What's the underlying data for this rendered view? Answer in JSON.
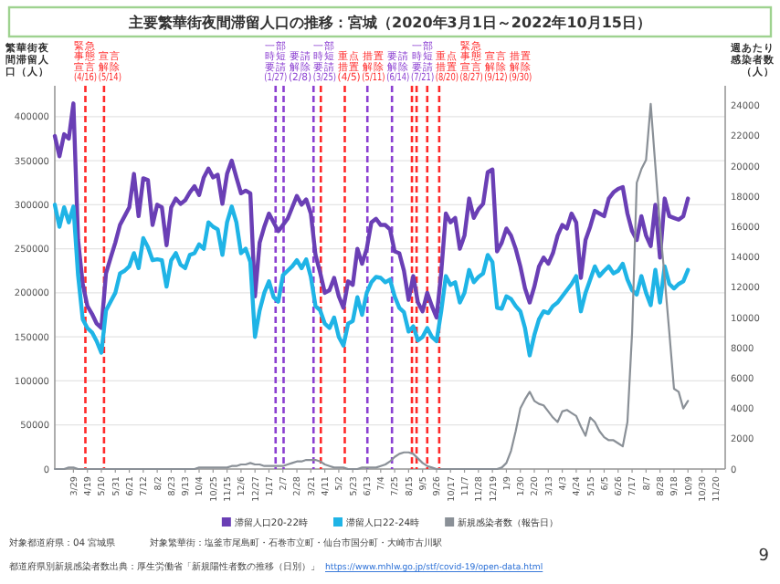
{
  "chart_data": {
    "type": "line",
    "title": "主要繁華街夜間滞留人口の推移：宮城（2020年3月1日～2022年10月15日）",
    "ylabel": "繁華街夜間滞留人口（人）",
    "y2label": "週あたり感染者数（人）",
    "x": [
      "2020-03-01",
      "2020-03-08",
      "2020-03-15",
      "2020-03-22",
      "2020-03-29",
      "2020-04-05",
      "2020-04-12",
      "2020-04-19",
      "2020-04-26",
      "2020-05-03",
      "2020-05-10",
      "2020-05-17",
      "2020-05-24",
      "2020-05-31",
      "2020-06-07",
      "2020-06-14",
      "2020-06-21",
      "2020-06-28",
      "2020-07-05",
      "2020-07-12",
      "2020-07-19",
      "2020-07-26",
      "2020-08-02",
      "2020-08-09",
      "2020-08-16",
      "2020-08-23",
      "2020-08-30",
      "2020-09-06",
      "2020-09-13",
      "2020-09-20",
      "2020-09-27",
      "2020-10-04",
      "2020-10-11",
      "2020-10-18",
      "2020-10-25",
      "2020-11-01",
      "2020-11-08",
      "2020-11-15",
      "2020-11-22",
      "2020-11-29",
      "2020-12-06",
      "2020-12-13",
      "2020-12-20",
      "2020-12-27",
      "2021-01-03",
      "2021-01-10",
      "2021-01-17",
      "2021-01-24",
      "2021-01-31",
      "2021-02-07",
      "2021-02-14",
      "2021-02-21",
      "2021-02-28",
      "2021-03-07",
      "2021-03-14",
      "2021-03-21",
      "2021-03-28",
      "2021-04-04",
      "2021-04-11",
      "2021-04-18",
      "2021-04-25",
      "2021-05-02",
      "2021-05-09",
      "2021-05-16",
      "2021-05-23",
      "2021-05-30",
      "2021-06-06",
      "2021-06-13",
      "2021-06-20",
      "2021-06-27",
      "2021-07-04",
      "2021-07-11",
      "2021-07-18",
      "2021-07-25",
      "2021-08-01",
      "2021-08-08",
      "2021-08-15",
      "2021-08-22",
      "2021-08-29",
      "2021-09-05",
      "2021-09-12",
      "2021-09-19",
      "2021-09-26",
      "2021-10-03",
      "2021-10-10",
      "2021-10-17",
      "2021-10-24",
      "2021-10-31",
      "2021-11-07",
      "2021-11-14",
      "2021-11-21",
      "2021-11-28",
      "2021-12-05",
      "2021-12-12",
      "2021-12-19",
      "2021-12-26",
      "2022-01-02",
      "2022-01-09",
      "2022-01-16",
      "2022-01-23",
      "2022-01-30",
      "2022-02-06",
      "2022-02-13",
      "2022-02-20",
      "2022-02-27",
      "2022-03-06",
      "2022-03-13",
      "2022-03-20",
      "2022-03-27",
      "2022-04-03",
      "2022-04-10",
      "2022-04-17",
      "2022-04-24",
      "2022-05-01",
      "2022-05-08",
      "2022-05-15",
      "2022-05-22",
      "2022-05-29",
      "2022-06-05",
      "2022-06-12",
      "2022-06-19",
      "2022-06-26",
      "2022-07-03",
      "2022-07-10",
      "2022-07-17",
      "2022-07-24",
      "2022-07-31",
      "2022-08-07",
      "2022-08-14",
      "2022-08-21",
      "2022-08-28",
      "2022-09-04",
      "2022-09-11",
      "2022-09-18",
      "2022-09-25",
      "2022-10-02",
      "2022-10-09"
    ],
    "xlim": [
      "2020-03-01",
      "2022-12-04"
    ],
    "xticks": [
      {
        "value": "2020-03-29",
        "label": "3/29"
      },
      {
        "value": "2020-04-19",
        "label": "4/19"
      },
      {
        "value": "2020-05-10",
        "label": "5/10"
      },
      {
        "value": "2020-05-31",
        "label": "5/31"
      },
      {
        "value": "2020-06-21",
        "label": "6/21"
      },
      {
        "value": "2020-07-12",
        "label": "7/12"
      },
      {
        "value": "2020-08-02",
        "label": "8/2"
      },
      {
        "value": "2020-08-23",
        "label": "8/23"
      },
      {
        "value": "2020-09-13",
        "label": "9/13"
      },
      {
        "value": "2020-10-04",
        "label": "10/4"
      },
      {
        "value": "2020-10-25",
        "label": "10/25"
      },
      {
        "value": "2020-11-15",
        "label": "11/15"
      },
      {
        "value": "2020-12-06",
        "label": "12/6"
      },
      {
        "value": "2020-12-27",
        "label": "12/27"
      },
      {
        "value": "2021-01-17",
        "label": "1/17"
      },
      {
        "value": "2021-02-07",
        "label": "2/7"
      },
      {
        "value": "2021-02-28",
        "label": "2/28"
      },
      {
        "value": "2021-03-21",
        "label": "3/21"
      },
      {
        "value": "2021-04-11",
        "label": "4/11"
      },
      {
        "value": "2021-05-02",
        "label": "5/2"
      },
      {
        "value": "2021-05-23",
        "label": "5/23"
      },
      {
        "value": "2021-06-13",
        "label": "6/13"
      },
      {
        "value": "2021-07-04",
        "label": "7/4"
      },
      {
        "value": "2021-07-25",
        "label": "7/25"
      },
      {
        "value": "2021-08-15",
        "label": "8/15"
      },
      {
        "value": "2021-09-05",
        "label": "9/5"
      },
      {
        "value": "2021-09-26",
        "label": "9/26"
      },
      {
        "value": "2021-10-17",
        "label": "10/17"
      },
      {
        "value": "2021-11-07",
        "label": "11/7"
      },
      {
        "value": "2021-11-28",
        "label": "11/28"
      },
      {
        "value": "2021-12-19",
        "label": "12/19"
      },
      {
        "value": "2022-01-09",
        "label": "1/9"
      },
      {
        "value": "2022-01-30",
        "label": "1/30"
      },
      {
        "value": "2022-02-20",
        "label": "2/20"
      },
      {
        "value": "2022-03-13",
        "label": "3/13"
      },
      {
        "value": "2022-04-03",
        "label": "4/3"
      },
      {
        "value": "2022-04-24",
        "label": "4/24"
      },
      {
        "value": "2022-05-15",
        "label": "5/15"
      },
      {
        "value": "2022-06-05",
        "label": "6/5"
      },
      {
        "value": "2022-06-26",
        "label": "6/26"
      },
      {
        "value": "2022-07-17",
        "label": "7/17"
      },
      {
        "value": "2022-08-07",
        "label": "8/7"
      },
      {
        "value": "2022-08-28",
        "label": "8/28"
      },
      {
        "value": "2022-09-18",
        "label": "9/18"
      },
      {
        "value": "2022-10-09",
        "label": "10/9"
      },
      {
        "value": "2022-10-30",
        "label": "10/30"
      },
      {
        "value": "2022-11-20",
        "label": "11/20"
      }
    ],
    "ylim": [
      0,
      435000
    ],
    "yticks": [
      0,
      50000,
      100000,
      150000,
      200000,
      250000,
      300000,
      350000,
      400000
    ],
    "y2lim": [
      0,
      25300
    ],
    "y2ticks": [
      0,
      2000,
      4000,
      6000,
      8000,
      10000,
      12000,
      14000,
      16000,
      18000,
      20000,
      22000,
      24000
    ],
    "series": [
      {
        "name": "滞留人口20-22時",
        "color": "#6a3fb5",
        "values": [
          378000,
          355000,
          380000,
          375000,
          415000,
          260000,
          210000,
          185000,
          176000,
          165000,
          160000,
          222000,
          240000,
          257000,
          277000,
          287000,
          297000,
          335000,
          287000,
          330000,
          328000,
          277000,
          300000,
          297000,
          254000,
          297000,
          307000,
          301000,
          305000,
          314000,
          321000,
          311000,
          331000,
          341000,
          331000,
          334000,
          301000,
          335000,
          350000,
          331000,
          313000,
          316000,
          313000,
          196000,
          257000,
          275000,
          290000,
          280000,
          270000,
          277000,
          284000,
          297000,
          310000,
          300000,
          306000,
          290000,
          243000,
          223000,
          200000,
          203000,
          217000,
          196000,
          183000,
          213000,
          209000,
          250000,
          233000,
          250000,
          280000,
          284000,
          277000,
          277000,
          272000,
          247000,
          245000,
          225000,
          192000,
          219000,
          189000,
          179000,
          200000,
          185000,
          172000,
          223000,
          290000,
          280000,
          285000,
          250000,
          265000,
          307000,
          285000,
          295000,
          301000,
          337000,
          340000,
          247000,
          257000,
          273000,
          265000,
          250000,
          230000,
          205000,
          189000,
          207000,
          230000,
          240000,
          233000,
          245000,
          265000,
          277000,
          273000,
          290000,
          280000,
          217000,
          260000,
          275000,
          293000,
          290000,
          287000,
          307000,
          314000,
          318000,
          320000,
          290000,
          270000,
          260000,
          287000,
          265000,
          253000,
          300000,
          240000,
          307000,
          287000,
          285000,
          283000,
          287000,
          307000
        ]
      },
      {
        "name": "滞留人口22-24時",
        "color": "#1fb4e6",
        "values": [
          300000,
          275000,
          297000,
          280000,
          298000,
          220000,
          170000,
          160000,
          155000,
          145000,
          132000,
          180000,
          190000,
          200000,
          222000,
          225000,
          230000,
          245000,
          228000,
          262000,
          252000,
          237000,
          238000,
          237000,
          207000,
          237000,
          245000,
          232000,
          228000,
          243000,
          245000,
          255000,
          250000,
          280000,
          275000,
          272000,
          243000,
          280000,
          298000,
          280000,
          245000,
          250000,
          235000,
          150000,
          180000,
          200000,
          213000,
          195000,
          190000,
          220000,
          225000,
          230000,
          237000,
          228000,
          238000,
          218000,
          185000,
          180000,
          165000,
          160000,
          172000,
          150000,
          140000,
          165000,
          168000,
          195000,
          175000,
          200000,
          212000,
          218000,
          217000,
          212000,
          215000,
          196000,
          183000,
          178000,
          156000,
          162000,
          146000,
          150000,
          160000,
          150000,
          145000,
          179000,
          219000,
          209000,
          212000,
          189000,
          200000,
          226000,
          212000,
          218000,
          222000,
          243000,
          235000,
          183000,
          182000,
          196000,
          193000,
          185000,
          179000,
          160000,
          129000,
          152000,
          170000,
          179000,
          177000,
          185000,
          189000,
          196000,
          203000,
          210000,
          219000,
          179000,
          200000,
          215000,
          230000,
          219000,
          225000,
          230000,
          222000,
          225000,
          233000,
          215000,
          203000,
          198000,
          219000,
          200000,
          186000,
          226000,
          189000,
          230000,
          210000,
          205000,
          210000,
          213000,
          226000
        ]
      },
      {
        "name": "新規感染者数（報告日）",
        "color": "#8a9097",
        "axis": "y2",
        "values": [
          0,
          0,
          0,
          100,
          100,
          0,
          0,
          0,
          0,
          0,
          0,
          0,
          0,
          0,
          0,
          0,
          0,
          0,
          0,
          0,
          0,
          0,
          0,
          0,
          0,
          0,
          0,
          0,
          0,
          0,
          0,
          100,
          100,
          100,
          100,
          100,
          100,
          100,
          200,
          200,
          300,
          300,
          400,
          300,
          300,
          200,
          200,
          200,
          200,
          200,
          300,
          400,
          500,
          500,
          600,
          600,
          600,
          500,
          300,
          200,
          100,
          100,
          100,
          0,
          0,
          0,
          100,
          100,
          100,
          100,
          200,
          300,
          500,
          800,
          1000,
          1100,
          1100,
          1000,
          700,
          400,
          200,
          100,
          0,
          0,
          0,
          0,
          0,
          0,
          0,
          0,
          0,
          0,
          0,
          0,
          0,
          0,
          100,
          400,
          1200,
          2500,
          4000,
          4600,
          5100,
          4500,
          4300,
          4200,
          3800,
          3400,
          3100,
          3800,
          3900,
          3700,
          3500,
          2800,
          2200,
          3400,
          3100,
          2500,
          2100,
          1900,
          1900,
          1700,
          1500,
          3100,
          9000,
          18900,
          19800,
          20400,
          24100,
          20000,
          16000,
          12600,
          9000,
          5300,
          5100,
          4000,
          4500
        ]
      }
    ],
    "ref_lines": [
      {
        "axis": "x",
        "value": "2020-04-16",
        "label": "緊急事態宣言(4/16)",
        "color": "#ff2a2a",
        "line_style": "dashed"
      },
      {
        "axis": "x",
        "value": "2020-05-14",
        "label": "宣言解除(5/14)",
        "color": "#ff2a2a",
        "line_style": "dashed"
      },
      {
        "axis": "x",
        "value": "2021-01-27",
        "label": "一部時短要請(1/27)",
        "color": "#8b3fd1",
        "line_style": "dashed"
      },
      {
        "axis": "x",
        "value": "2021-02-08",
        "label": "要請解除(2/8)",
        "color": "#8b3fd1",
        "line_style": "dashed"
      },
      {
        "axis": "x",
        "value": "2021-03-25",
        "label": "一部時短要請(3/25)",
        "color": "#8b3fd1",
        "line_style": "dashed"
      },
      {
        "axis": "x",
        "value": "2021-04-05",
        "label": "重点措置(4/5)",
        "color": "#ff2a2a",
        "line_style": "dashed"
      },
      {
        "axis": "x",
        "value": "2021-05-11",
        "label": "措置解除(5/11)",
        "color": "#ff2a2a",
        "line_style": "dashed"
      },
      {
        "axis": "x",
        "value": "2021-06-14",
        "label": "要請解除(6/14)",
        "color": "#8b3fd1",
        "line_style": "dashed"
      },
      {
        "axis": "x",
        "value": "2021-07-21",
        "label": "一部時短要請(7/21)",
        "color": "#8b3fd1",
        "line_style": "dashed"
      },
      {
        "axis": "x",
        "value": "2021-08-20",
        "label": "重点措置(8/20)",
        "color": "#ff2a2a",
        "line_style": "dashed"
      },
      {
        "axis": "x",
        "value": "2021-08-27",
        "label": "緊急事態宣言(8/27)",
        "color": "#ff2a2a",
        "line_style": "dashed"
      },
      {
        "axis": "x",
        "value": "2021-09-12",
        "label": "宣言解除(9/12)",
        "color": "#ff2a2a",
        "line_style": "dashed"
      },
      {
        "axis": "x",
        "value": "2021-09-30",
        "label": "措置解除(9/30)",
        "color": "#ff2a2a",
        "line_style": "dashed"
      }
    ],
    "legend": "bottom",
    "grid": "y",
    "annotations": [
      "対象都道府県：04 宮城県",
      "対象繁華街：塩釜市尾島町・石巻市立町・仙台市国分町・大崎市古川駅",
      "都道府県別新規感染者数出典：厚生労働省「新規陽性者数の推移（日別）」",
      "https://www.mhlw.go.jp/stf/covid-19/open-data.html",
      "9"
    ]
  }
}
